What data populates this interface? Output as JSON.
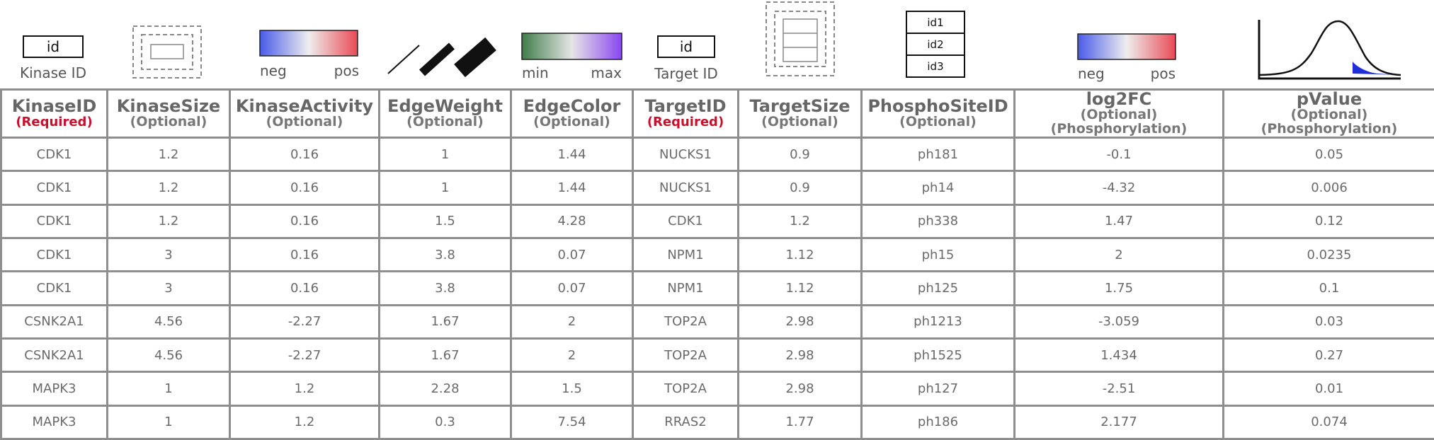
{
  "legend": {
    "kinase_box": "id",
    "kinase_caption": "Kinase ID",
    "activity_neg": "neg",
    "activity_pos": "pos",
    "edgecolor_min": "min",
    "edgecolor_max": "max",
    "target_box": "id",
    "target_caption": "Target ID",
    "site_ids": [
      "id1",
      "id2",
      "id3"
    ],
    "fc_neg": "neg",
    "fc_pos": "pos"
  },
  "colors": {
    "neg": "#4a5be8",
    "mid": "#eeeeee",
    "pos": "#e84a55",
    "edge_min": "#3f7d4a",
    "edge_max": "#8a46f0",
    "pvalue_fill": "#1f2fd8",
    "required": "#c8102e"
  },
  "table": {
    "headers": [
      {
        "name": "KinaseID",
        "sub": "(Required)",
        "required": true
      },
      {
        "name": "KinaseSize",
        "sub": "(Optional)",
        "required": false
      },
      {
        "name": "KinaseActivity",
        "sub": "(Optional)",
        "required": false
      },
      {
        "name": "EdgeWeight",
        "sub": "(Optional)",
        "required": false
      },
      {
        "name": "EdgeColor",
        "sub": "(Optional)",
        "required": false
      },
      {
        "name": "TargetID",
        "sub": "(Required)",
        "required": true
      },
      {
        "name": "TargetSize",
        "sub": "(Optional)",
        "required": false
      },
      {
        "name": "PhosphoSiteID",
        "sub": "(Optional)",
        "required": false
      },
      {
        "name": "log2FC",
        "sub": "(Optional)  (Phosphorylation)",
        "required": false
      },
      {
        "name": "pValue",
        "sub": "(Optional)  (Phosphorylation)",
        "required": false
      }
    ],
    "rows": [
      [
        "CDK1",
        "1.2",
        "0.16",
        "1",
        "1.44",
        "NUCKS1",
        "0.9",
        "ph181",
        "-0.1",
        "0.05"
      ],
      [
        "CDK1",
        "1.2",
        "0.16",
        "1",
        "1.44",
        "NUCKS1",
        "0.9",
        "ph14",
        "-4.32",
        "0.006"
      ],
      [
        "CDK1",
        "1.2",
        "0.16",
        "1.5",
        "4.28",
        "CDK1",
        "1.2",
        "ph338",
        "1.47",
        "0.12"
      ],
      [
        "CDK1",
        "3",
        "0.16",
        "3.8",
        "0.07",
        "NPM1",
        "1.12",
        "ph15",
        "2",
        "0.0235"
      ],
      [
        "CDK1",
        "3",
        "0.16",
        "3.8",
        "0.07",
        "NPM1",
        "1.12",
        "ph125",
        "1.75",
        "0.1"
      ],
      [
        "CSNK2A1",
        "4.56",
        "-2.27",
        "1.67",
        "2",
        "TOP2A",
        "2.98",
        "ph1213",
        "-3.059",
        "0.03"
      ],
      [
        "CSNK2A1",
        "4.56",
        "-2.27",
        "1.67",
        "2",
        "TOP2A",
        "2.98",
        "ph1525",
        "1.434",
        "0.27"
      ],
      [
        "MAPK3",
        "1",
        "1.2",
        "2.28",
        "1.5",
        "TOP2A",
        "2.98",
        "ph127",
        "-2.51",
        "0.01"
      ],
      [
        "MAPK3",
        "1",
        "1.2",
        "0.3",
        "7.54",
        "RRAS2",
        "1.77",
        "ph186",
        "2.177",
        "0.074"
      ]
    ]
  }
}
